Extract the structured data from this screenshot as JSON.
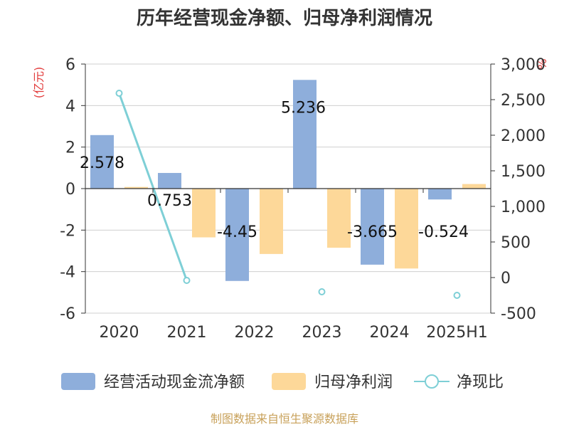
{
  "chart_data": {
    "type": "bar",
    "title": "历年经营现金净额、归母净利润情况",
    "categories": [
      "2020",
      "2021",
      "2022",
      "2023",
      "2024",
      "2025H1"
    ],
    "left_axis": {
      "unit": "(亿元)",
      "ylim": [
        -6,
        6
      ],
      "ticks": [
        "6",
        "4",
        "2",
        "0",
        "-2",
        "-4",
        "-6"
      ]
    },
    "right_axis": {
      "unit": "%",
      "ylim": [
        -500,
        3000
      ],
      "ticks": [
        "3,000",
        "2,500",
        "2,000",
        "1,500",
        "1,000",
        "500",
        "0",
        "-500"
      ]
    },
    "series": [
      {
        "name": "经营活动现金流净额",
        "type": "bar",
        "color": "#8eaedb",
        "values": [
          2.578,
          0.753,
          -4.45,
          5.236,
          -3.665,
          -0.524
        ]
      },
      {
        "name": "归母净利润",
        "type": "bar",
        "color": "#fdd899",
        "values": [
          0.08,
          -2.35,
          -3.15,
          -2.85,
          -3.85,
          0.22
        ]
      },
      {
        "name": "净现比",
        "type": "line",
        "axis": "right",
        "color": "#7ecfd6",
        "values": [
          2590,
          -40,
          null,
          -200,
          null,
          -250
        ]
      }
    ],
    "data_labels": [
      "2.578",
      "0.753",
      "-4.45",
      "5.236",
      "-3.665",
      "-0.524"
    ],
    "grid": true,
    "legend_position": "bottom"
  },
  "footer": {
    "source": "制图数据来自恒生聚源数据库"
  }
}
